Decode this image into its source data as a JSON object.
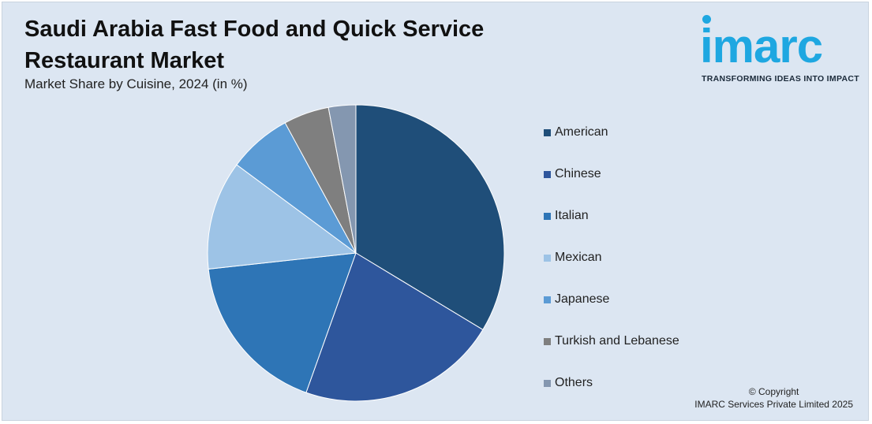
{
  "header": {
    "title": "Saudi Arabia Fast Food and Quick Service Restaurant Market",
    "subtitle": "Market Share by Cuisine, 2024 (in %)"
  },
  "logo": {
    "wordmark": "imarc",
    "tagline": "TRANSFORMING IDEAS INTO IMPACT",
    "color": "#1ea7e1"
  },
  "chart_data": {
    "type": "pie",
    "title": "Saudi Arabia Fast Food and Quick Service Restaurant Market",
    "subtitle": "Market Share by Cuisine, 2024 (in %)",
    "legend_position": "right",
    "slices": [
      {
        "label": "American",
        "value": 34,
        "color": "#1f4e79"
      },
      {
        "label": "Chinese",
        "value": 22,
        "color": "#2e569c"
      },
      {
        "label": "Italian",
        "value": 18,
        "color": "#2e75b6"
      },
      {
        "label": "Mexican",
        "value": 12,
        "color": "#9dc3e6"
      },
      {
        "label": "Japanese",
        "value": 7,
        "color": "#5b9bd5"
      },
      {
        "label": "Turkish and Lebanese",
        "value": 5,
        "color": "#7f7f7f"
      },
      {
        "label": "Others",
        "value": 3,
        "color": "#8497b0"
      }
    ]
  },
  "footer": {
    "copyright_line1": "© Copyright",
    "copyright_line2": "IMARC Services Private Limited 2025"
  }
}
